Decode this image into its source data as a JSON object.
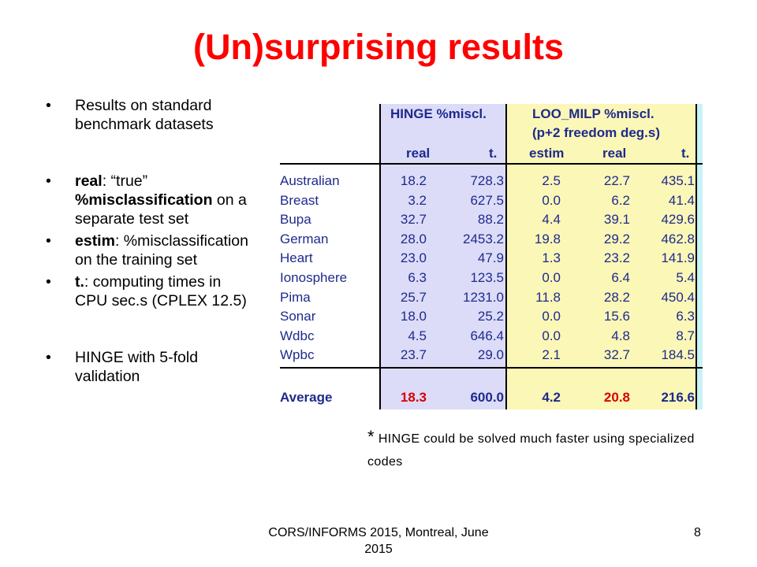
{
  "slide": {
    "title": "(Un)surprising results",
    "bullets": [
      {
        "bold": "",
        "text": "Results on standard benchmark datasets"
      },
      {
        "bold": "real",
        "text": ": “true” ",
        "bold2": "%misclassification",
        "text2": " on a separate test set"
      },
      {
        "bold": " estim",
        "text": ": %misclassification on the training set"
      },
      {
        "bold": "t.",
        "text": ": computing times in CPU sec.s (CPLEX 12.5)"
      },
      {
        "bold": "",
        "text": "HINGE with 5-fold validation"
      }
    ],
    "note_star": "*",
    "note": " HINGE could be solved much faster using specialized codes",
    "footer": "CORS/INFORMS 2015, Montreal, June 2015",
    "page_number": "8"
  },
  "table": {
    "group1": "HINGE %miscl.",
    "group2_line1": "LOO_MILP %miscl.",
    "group2_line2": "(p+2 freedom deg.s)",
    "columns": [
      "real",
      "t.",
      "estim",
      "real",
      "t."
    ],
    "rows": [
      {
        "name": "Australian",
        "values": [
          "18.2",
          "728.3",
          "2.5",
          "22.7",
          "435.1"
        ]
      },
      {
        "name": "Breast",
        "values": [
          "3.2",
          "627.5",
          "0.0",
          "6.2",
          "41.4"
        ]
      },
      {
        "name": "Bupa",
        "values": [
          "32.7",
          "88.2",
          "4.4",
          "39.1",
          "429.6"
        ]
      },
      {
        "name": "German",
        "values": [
          "28.0",
          "2453.2",
          "19.8",
          "29.2",
          "462.8"
        ]
      },
      {
        "name": "Heart",
        "values": [
          "23.0",
          "47.9",
          "1.3",
          "23.2",
          "141.9"
        ]
      },
      {
        "name": "Ionosphere",
        "values": [
          "6.3",
          "123.5",
          "0.0",
          "6.4",
          "5.4"
        ]
      },
      {
        "name": "Pima",
        "values": [
          "25.7",
          "1231.0",
          "11.8",
          "28.2",
          "450.4"
        ]
      },
      {
        "name": "Sonar",
        "values": [
          "18.0",
          "25.2",
          "0.0",
          "15.6",
          "6.3"
        ]
      },
      {
        "name": "Wdbc",
        "values": [
          "4.5",
          "646.4",
          "0.0",
          "4.8",
          "8.7"
        ]
      },
      {
        "name": "Wpbc",
        "values": [
          "23.7",
          "29.0",
          "2.1",
          "32.7",
          "184.5"
        ]
      }
    ],
    "average": {
      "name": "Average",
      "values": [
        "18.3",
        "600.0",
        "4.2",
        "20.8",
        "216.6"
      ]
    },
    "colors": {
      "hinge_bg": "#dcdcf8",
      "loo_bg": "#fbf7b7",
      "edge_bg": "#c9f2f6",
      "text": "#1e2a8c",
      "highlight": "#d80000",
      "title": "#ff0000"
    }
  }
}
